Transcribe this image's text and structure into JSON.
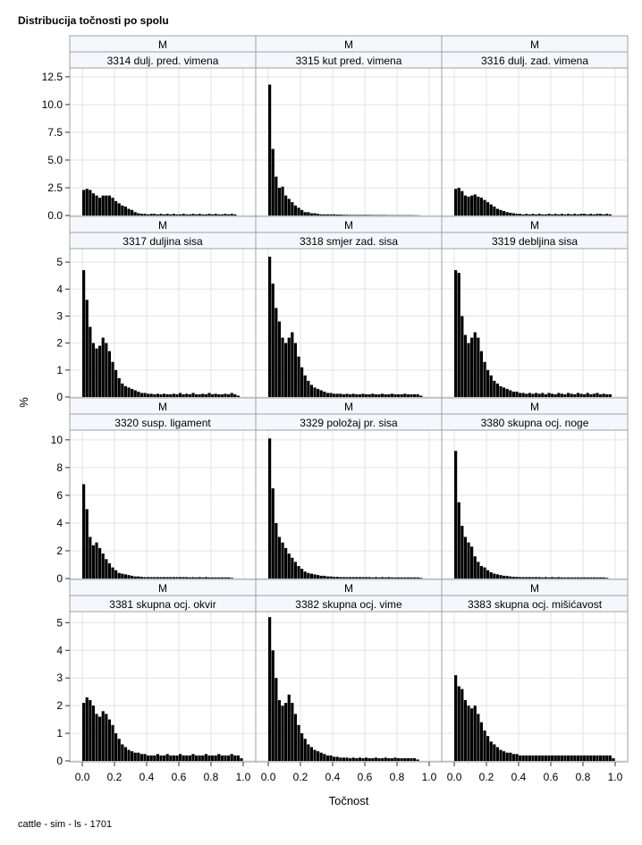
{
  "chart_data": {
    "type": "bar",
    "title": "Distribucija točnosti po spolu",
    "xlabel": "Točnost",
    "ylabel": "%",
    "footer": "cattle - sim - ls - 1701",
    "bin_width": 0.02,
    "xlim": [
      0,
      1
    ],
    "xticks": [
      "0.0",
      "0.2",
      "0.4",
      "0.6",
      "0.8",
      "1.0"
    ],
    "grid": true,
    "colors": {
      "bar": "#000000",
      "grid": "#e3e3e3",
      "border": "#a0a0a0",
      "header": "#f5f7fc"
    },
    "rows": [
      {
        "ylim": [
          0,
          13.3
        ],
        "yticks": [
          "0.0",
          "2.5",
          "5.0",
          "7.5",
          "10.0",
          "12.5"
        ],
        "ytick_values": [
          0,
          2.5,
          5,
          7.5,
          10,
          12.5
        ]
      },
      {
        "ylim": [
          0,
          5.5
        ],
        "yticks": [
          "0",
          "1",
          "2",
          "3",
          "4",
          "5"
        ],
        "ytick_values": [
          0,
          1,
          2,
          3,
          4,
          5
        ]
      },
      {
        "ylim": [
          0,
          10.7
        ],
        "yticks": [
          "0",
          "2",
          "4",
          "6",
          "8",
          "10"
        ],
        "ytick_values": [
          0,
          2,
          4,
          6,
          8,
          10
        ]
      },
      {
        "ylim": [
          0,
          5.4
        ],
        "yticks": [
          "0",
          "1",
          "2",
          "3",
          "4",
          "5"
        ],
        "ytick_values": [
          0,
          1,
          2,
          3,
          4,
          5
        ]
      }
    ],
    "panels": [
      {
        "sex": "M",
        "label": "3314 dulj. pred. vimena",
        "values": [
          2.3,
          2.4,
          2.3,
          2.0,
          1.8,
          1.6,
          1.8,
          1.8,
          1.8,
          1.6,
          1.3,
          1.1,
          0.9,
          0.8,
          0.6,
          0.5,
          0.3,
          0.2,
          0.15,
          0.15,
          0.1,
          0.15,
          0.15,
          0.1,
          0.15,
          0.1,
          0.15,
          0.1,
          0.15,
          0.1,
          0.1,
          0.15,
          0.1,
          0.1,
          0.15,
          0.1,
          0.15,
          0.1,
          0.1,
          0.15,
          0.1,
          0.15,
          0.1,
          0.1,
          0.15,
          0.1,
          0.15,
          0.1,
          0,
          0
        ]
      },
      {
        "sex": "M",
        "label": "3315 kut pred. vimena",
        "values": [
          11.8,
          6.0,
          3.5,
          2.5,
          2.6,
          1.8,
          1.5,
          1.2,
          0.9,
          0.7,
          0.5,
          0.3,
          0.3,
          0.2,
          0.2,
          0.15,
          0.1,
          0.1,
          0.1,
          0.1,
          0.1,
          0.08,
          0.08,
          0.06,
          0.06,
          0.05,
          0.05,
          0.05,
          0.05,
          0.05,
          0.05,
          0.05,
          0.04,
          0.04,
          0.04,
          0.04,
          0.04,
          0.03,
          0.03,
          0.03,
          0.03,
          0.03,
          0.03,
          0.03,
          0.03,
          0.02,
          0.02,
          0,
          0,
          0
        ]
      },
      {
        "sex": "M",
        "label": "3316 dulj. zad. vimena",
        "values": [
          2.4,
          2.5,
          2.2,
          1.8,
          1.7,
          1.8,
          1.9,
          1.7,
          1.6,
          1.4,
          1.2,
          1.0,
          0.8,
          0.6,
          0.5,
          0.4,
          0.3,
          0.25,
          0.2,
          0.15,
          0.15,
          0.1,
          0.15,
          0.1,
          0.15,
          0.1,
          0.15,
          0.1,
          0.1,
          0.15,
          0.1,
          0.15,
          0.1,
          0.15,
          0.1,
          0.15,
          0.1,
          0.15,
          0.1,
          0.15,
          0.15,
          0.1,
          0.15,
          0.1,
          0.15,
          0.15,
          0.1,
          0.15,
          0.1,
          0
        ]
      },
      {
        "sex": "M",
        "label": "3317 duljina sisa",
        "values": [
          4.7,
          3.6,
          2.6,
          2.0,
          1.8,
          1.9,
          2.2,
          2.0,
          1.7,
          1.3,
          1.0,
          0.7,
          0.5,
          0.4,
          0.35,
          0.3,
          0.25,
          0.2,
          0.15,
          0.15,
          0.12,
          0.12,
          0.1,
          0.12,
          0.1,
          0.12,
          0.1,
          0.1,
          0.12,
          0.1,
          0.15,
          0.1,
          0.12,
          0.1,
          0.15,
          0.1,
          0.1,
          0.12,
          0.1,
          0.15,
          0.1,
          0.12,
          0.1,
          0.1,
          0.12,
          0.1,
          0.15,
          0.1,
          0.05,
          0
        ]
      },
      {
        "sex": "M",
        "label": "3318 smjer zad. sisa",
        "values": [
          5.2,
          4.2,
          3.3,
          2.8,
          2.2,
          2.0,
          2.2,
          2.4,
          2.0,
          1.5,
          1.1,
          0.8,
          0.6,
          0.45,
          0.35,
          0.3,
          0.25,
          0.2,
          0.15,
          0.15,
          0.12,
          0.12,
          0.12,
          0.1,
          0.12,
          0.1,
          0.12,
          0.1,
          0.1,
          0.12,
          0.1,
          0.1,
          0.12,
          0.1,
          0.1,
          0.12,
          0.1,
          0.1,
          0.12,
          0.1,
          0.1,
          0.1,
          0.12,
          0.1,
          0.1,
          0.1,
          0.1,
          0.05,
          0,
          0
        ]
      },
      {
        "sex": "M",
        "label": "3319 debljina sisa",
        "values": [
          4.7,
          4.6,
          3.0,
          2.3,
          2.0,
          2.2,
          2.4,
          2.2,
          1.7,
          1.3,
          1.0,
          0.8,
          0.6,
          0.5,
          0.4,
          0.35,
          0.3,
          0.25,
          0.2,
          0.2,
          0.15,
          0.15,
          0.12,
          0.15,
          0.12,
          0.15,
          0.12,
          0.15,
          0.1,
          0.15,
          0.12,
          0.1,
          0.15,
          0.12,
          0.1,
          0.15,
          0.12,
          0.1,
          0.15,
          0.12,
          0.1,
          0.15,
          0.1,
          0.12,
          0.15,
          0.1,
          0.12,
          0.1,
          0.1,
          0
        ]
      },
      {
        "sex": "M",
        "label": "3320 susp. ligament",
        "values": [
          6.8,
          5.0,
          3.0,
          2.4,
          2.6,
          2.2,
          1.8,
          1.4,
          1.1,
          0.8,
          0.6,
          0.4,
          0.35,
          0.3,
          0.25,
          0.2,
          0.15,
          0.15,
          0.12,
          0.1,
          0.1,
          0.1,
          0.1,
          0.1,
          0.1,
          0.1,
          0.1,
          0.1,
          0.1,
          0.1,
          0.1,
          0.1,
          0.1,
          0.08,
          0.1,
          0.08,
          0.1,
          0.08,
          0.1,
          0.08,
          0.08,
          0.08,
          0.08,
          0.08,
          0.08,
          0.08,
          0.05,
          0,
          0,
          0
        ]
      },
      {
        "sex": "M",
        "label": "3329 položaj pr. sisa",
        "values": [
          10.1,
          6.5,
          4.0,
          3.0,
          2.6,
          2.2,
          1.8,
          1.5,
          1.2,
          0.9,
          0.7,
          0.5,
          0.4,
          0.35,
          0.3,
          0.25,
          0.2,
          0.2,
          0.15,
          0.15,
          0.12,
          0.12,
          0.1,
          0.1,
          0.1,
          0.1,
          0.1,
          0.1,
          0.1,
          0.1,
          0.1,
          0.1,
          0.08,
          0.1,
          0.08,
          0.1,
          0.08,
          0.1,
          0.08,
          0.08,
          0.08,
          0.08,
          0.08,
          0.08,
          0.08,
          0.08,
          0.08,
          0.05,
          0,
          0
        ]
      },
      {
        "sex": "M",
        "label": "3380 skupna ocj. noge",
        "values": [
          9.2,
          5.5,
          3.8,
          3.0,
          2.6,
          2.3,
          1.6,
          1.2,
          0.9,
          0.8,
          0.6,
          0.45,
          0.35,
          0.3,
          0.25,
          0.2,
          0.18,
          0.15,
          0.12,
          0.12,
          0.1,
          0.1,
          0.1,
          0.1,
          0.1,
          0.1,
          0.1,
          0.08,
          0.1,
          0.08,
          0.1,
          0.08,
          0.1,
          0.08,
          0.08,
          0.08,
          0.08,
          0.08,
          0.08,
          0.08,
          0.08,
          0.08,
          0.08,
          0.08,
          0.08,
          0.08,
          0.08,
          0.05,
          0,
          0
        ]
      },
      {
        "sex": "M",
        "label": "3381 skupna ocj. okvir",
        "values": [
          2.1,
          2.3,
          2.2,
          2.0,
          1.7,
          1.6,
          1.8,
          1.7,
          1.5,
          1.3,
          1.0,
          0.8,
          0.6,
          0.5,
          0.4,
          0.35,
          0.3,
          0.3,
          0.25,
          0.25,
          0.2,
          0.2,
          0.2,
          0.25,
          0.2,
          0.2,
          0.25,
          0.2,
          0.2,
          0.2,
          0.25,
          0.2,
          0.2,
          0.2,
          0.25,
          0.2,
          0.2,
          0.2,
          0.25,
          0.2,
          0.2,
          0.2,
          0.25,
          0.2,
          0.2,
          0.2,
          0.25,
          0.2,
          0.2,
          0.1
        ]
      },
      {
        "sex": "M",
        "label": "3382 skupna ocj. vime",
        "values": [
          5.2,
          4.0,
          3.0,
          2.2,
          2.0,
          2.1,
          2.4,
          2.1,
          1.7,
          1.3,
          1.0,
          0.8,
          0.6,
          0.5,
          0.4,
          0.35,
          0.3,
          0.25,
          0.2,
          0.2,
          0.15,
          0.15,
          0.12,
          0.12,
          0.12,
          0.1,
          0.12,
          0.1,
          0.12,
          0.1,
          0.12,
          0.1,
          0.1,
          0.12,
          0.1,
          0.1,
          0.12,
          0.1,
          0.1,
          0.12,
          0.1,
          0.1,
          0.1,
          0.1,
          0.1,
          0.1,
          0.05,
          0,
          0,
          0
        ]
      },
      {
        "sex": "M",
        "label": "3383 skupna ocj. mišićavost",
        "values": [
          3.1,
          2.7,
          2.6,
          2.2,
          2.0,
          1.9,
          2.0,
          1.7,
          1.4,
          1.1,
          0.9,
          0.7,
          0.6,
          0.5,
          0.4,
          0.35,
          0.3,
          0.3,
          0.25,
          0.25,
          0.2,
          0.2,
          0.2,
          0.2,
          0.2,
          0.2,
          0.2,
          0.2,
          0.2,
          0.2,
          0.2,
          0.2,
          0.2,
          0.2,
          0.2,
          0.2,
          0.2,
          0.2,
          0.2,
          0.2,
          0.2,
          0.2,
          0.2,
          0.2,
          0.2,
          0.2,
          0.2,
          0.2,
          0.2,
          0.1
        ]
      }
    ]
  }
}
